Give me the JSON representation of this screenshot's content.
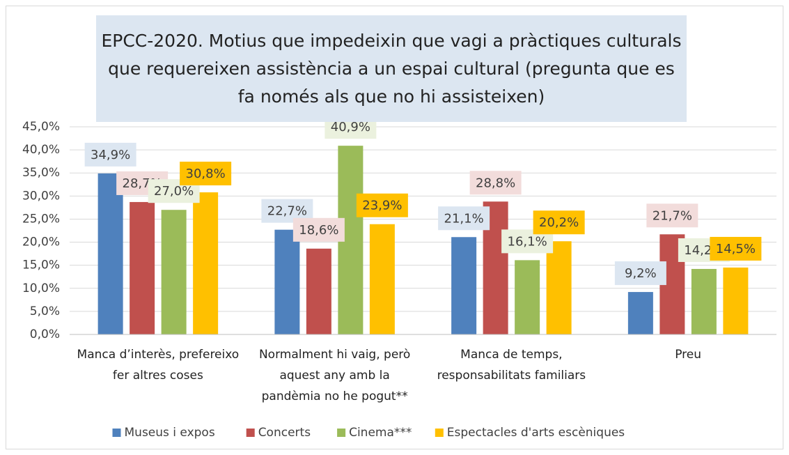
{
  "chart_data": {
    "type": "bar",
    "title": "EPCC-2020. Motius que impedeixin que vagi a pràctiques culturals que requereixen assistència a un espai cultural (pregunta que es fa només als que no hi assisteixen)",
    "categories": [
      "Manca d’interès, prefereixo fer altres coses",
      "Normalment hi vaig, però aquest any amb la pandèmia no he pogut**",
      "Manca de temps, responsabilitats familiars",
      "Preu"
    ],
    "series": [
      {
        "name": "Museus i expos",
        "color": "#4f81bd",
        "label_bg": "#dce6f1",
        "values": [
          34.9,
          22.7,
          21.1,
          9.2
        ],
        "value_labels": [
          "34,9%",
          "22,7%",
          "21,1%",
          "9,2%"
        ]
      },
      {
        "name": "Concerts",
        "color": "#c0504d",
        "label_bg": "#f2dcdb",
        "values": [
          28.7,
          18.6,
          28.8,
          21.7
        ],
        "value_labels": [
          "28,7%",
          "18,6%",
          "28,8%",
          "21,7%"
        ]
      },
      {
        "name": "Cinema***",
        "color": "#9bbb59",
        "label_bg": "#ebf1de",
        "values": [
          27.0,
          40.9,
          16.1,
          14.2
        ],
        "value_labels": [
          "27,0%",
          "40,9%",
          "16,1%",
          "14,2%"
        ]
      },
      {
        "name": "Espectacles d'arts escèniques",
        "color": "#ffc000",
        "label_bg": "#ffc000",
        "values": [
          30.8,
          23.9,
          20.2,
          14.5
        ],
        "value_labels": [
          "30,8%",
          "23,9%",
          "20,2%",
          "14,5%"
        ]
      }
    ],
    "ylim": [
      0,
      45
    ],
    "yticks": [
      {
        "value": 0,
        "label": "0,0%"
      },
      {
        "value": 5,
        "label": "5,0%"
      },
      {
        "value": 10,
        "label": "10,0%"
      },
      {
        "value": 15,
        "label": "15,0%"
      },
      {
        "value": 20,
        "label": "20,0%"
      },
      {
        "value": 25,
        "label": "25,0%"
      },
      {
        "value": 30,
        "label": "30,0%"
      },
      {
        "value": 35,
        "label": "35,0%"
      },
      {
        "value": 40,
        "label": "40,0%"
      },
      {
        "value": 45,
        "label": "45,0%"
      }
    ],
    "grid": true,
    "legend": "bottom"
  }
}
